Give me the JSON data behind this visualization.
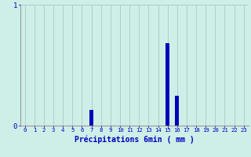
{
  "hours": [
    0,
    1,
    2,
    3,
    4,
    5,
    6,
    7,
    8,
    9,
    10,
    11,
    12,
    13,
    14,
    15,
    16,
    17,
    18,
    19,
    20,
    21,
    22,
    23
  ],
  "values": [
    0,
    0,
    0,
    0,
    0,
    0,
    0,
    0.13,
    0,
    0,
    0,
    0,
    0,
    0,
    0,
    0.68,
    0.25,
    0,
    0,
    0,
    0,
    0,
    0,
    0
  ],
  "bar_color": "#0000bb",
  "bg_color": "#ceeee8",
  "grid_color": "#b0cece",
  "axis_color": "#999999",
  "text_color": "#0000bb",
  "xlabel": "Précipitations 6min ( mm )",
  "ylim": [
    0,
    1.0
  ],
  "yticks": [
    0,
    1
  ],
  "xlim": [
    -0.5,
    23.5
  ],
  "label_fontsize": 7,
  "tick_fontsize": 5.2
}
